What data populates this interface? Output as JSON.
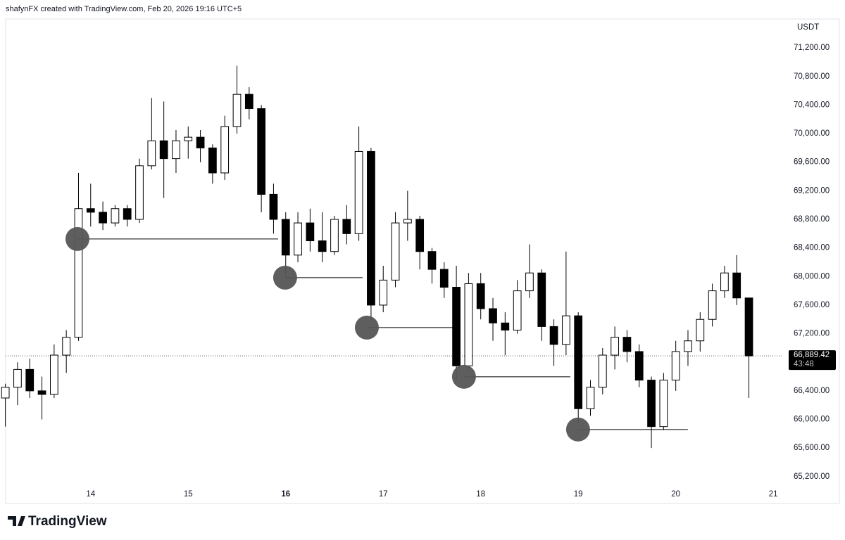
{
  "header": "shafynFX created with TradingView.com, Feb 20, 2026 19:16 UTC+5",
  "footer": "TradingView",
  "chart_data": {
    "type": "candlestick",
    "currency": "USDT",
    "x": [
      13.125,
      13.25,
      13.375,
      13.5,
      13.625,
      13.75,
      13.875,
      14.0,
      14.125,
      14.25,
      14.375,
      14.5,
      14.625,
      14.75,
      14.875,
      15.0,
      15.125,
      15.25,
      15.375,
      15.5,
      15.625,
      15.75,
      15.875,
      16.0,
      16.125,
      16.25,
      16.375,
      16.5,
      16.625,
      16.75,
      16.875,
      17.0,
      17.125,
      17.25,
      17.375,
      17.5,
      17.625,
      17.75,
      17.875,
      18.0,
      18.125,
      18.25,
      18.375,
      18.5,
      18.625,
      18.75,
      18.875,
      19.0,
      19.125,
      19.25,
      19.375,
      19.5,
      19.625,
      19.75,
      19.875,
      20.0,
      20.125,
      20.25,
      20.375,
      20.5,
      20.625,
      20.75
    ],
    "open": [
      66300,
      66450,
      66700,
      66400,
      66350,
      66900,
      67150,
      68950,
      68900,
      68750,
      68950,
      68800,
      69550,
      69900,
      69650,
      69900,
      69950,
      69800,
      69450,
      70100,
      70550,
      70350,
      69150,
      68800,
      68300,
      68750,
      68500,
      68350,
      68800,
      68600,
      69750,
      67600,
      67950,
      68750,
      68800,
      68350,
      68100,
      67850,
      66750,
      67900,
      67550,
      67350,
      67250,
      67800,
      68050,
      67300,
      67050,
      67450,
      66150,
      66450,
      66900,
      67150,
      66950,
      66550,
      65900,
      66550,
      66950,
      67100,
      67400,
      67800,
      68050,
      67700
    ],
    "high": [
      66500,
      66800,
      66850,
      66600,
      67050,
      67250,
      69450,
      69300,
      69050,
      69000,
      69000,
      69650,
      70500,
      70450,
      70050,
      70100,
      70050,
      69850,
      70250,
      70950,
      70650,
      70400,
      69300,
      68900,
      68900,
      68950,
      68900,
      68850,
      69000,
      70100,
      69800,
      68150,
      68900,
      69200,
      68850,
      68400,
      68200,
      68150,
      68050,
      68050,
      67700,
      67500,
      67950,
      68450,
      68100,
      67400,
      68350,
      67500,
      66550,
      67000,
      67300,
      67250,
      67050,
      66600,
      66650,
      67100,
      67250,
      67500,
      67900,
      68150,
      68300,
      67700
    ],
    "low": [
      65900,
      66200,
      66300,
      66000,
      66300,
      66650,
      67100,
      68700,
      68650,
      68700,
      68700,
      68750,
      69500,
      69100,
      69450,
      69650,
      69600,
      69300,
      69350,
      70000,
      70200,
      68900,
      68600,
      68000,
      68200,
      68350,
      68200,
      68300,
      68450,
      68500,
      67400,
      67500,
      67850,
      68500,
      68100,
      67900,
      67700,
      66550,
      66700,
      67400,
      67100,
      66900,
      67200,
      67700,
      67100,
      66750,
      66900,
      65950,
      66050,
      66350,
      66700,
      66800,
      66450,
      65600,
      65850,
      66400,
      66750,
      66950,
      67300,
      67700,
      67600,
      66300
    ],
    "close": [
      66450,
      66700,
      66400,
      66350,
      66900,
      67150,
      68950,
      68900,
      68750,
      68950,
      68800,
      69550,
      69900,
      69650,
      69900,
      69950,
      69800,
      69450,
      70100,
      70550,
      70350,
      69150,
      68800,
      68300,
      68750,
      68500,
      68350,
      68800,
      68600,
      69750,
      67600,
      67950,
      68750,
      68800,
      68350,
      68100,
      67850,
      66750,
      67900,
      67550,
      67350,
      67250,
      67800,
      68050,
      67300,
      67050,
      67450,
      66150,
      66450,
      66900,
      67150,
      66950,
      66550,
      65900,
      66550,
      66950,
      67100,
      67400,
      67800,
      68050,
      67700,
      66889.42
    ],
    "up_color": "#ffffff",
    "down_color": "#000000",
    "border_color": "#000000",
    "levels": [
      {
        "x": [
          13.864,
          15.922
        ],
        "y": 68525
      },
      {
        "x": [
          15.994,
          16.788
        ],
        "y": 67984
      },
      {
        "x": [
          16.832,
          17.763
        ],
        "y": 67285
      },
      {
        "x": [
          17.828,
          18.918
        ],
        "y": 66597
      },
      {
        "x": [
          18.998,
          20.124
        ],
        "y": 65859
      }
    ],
    "marker_color": "#555555",
    "last_price": {
      "value": 66889.42,
      "label": "66,889.42"
    },
    "countdown": "43:48",
    "xlim": [
      13.07,
      21.1
    ],
    "xticks": [
      14,
      15,
      16,
      17,
      18,
      19,
      20,
      21
    ],
    "bold_xtick_index": 2,
    "ylim": [
      65080,
      71575
    ],
    "yticks": [
      {
        "value": 65200,
        "label": "65,200.00"
      },
      {
        "value": 65600,
        "label": "65,600.00"
      },
      {
        "value": 66000,
        "label": "66,000.00"
      },
      {
        "value": 66400,
        "label": "66,400.00"
      },
      {
        "value": 66800,
        "label": "66,800.00"
      },
      {
        "value": 67200,
        "label": "67,200.00"
      },
      {
        "value": 67600,
        "label": "67,600.00"
      },
      {
        "value": 68000,
        "label": "68,000.00"
      },
      {
        "value": 68400,
        "label": "68,400.00"
      },
      {
        "value": 68800,
        "label": "68,800.00"
      },
      {
        "value": 69200,
        "label": "69,200.00"
      },
      {
        "value": 69600,
        "label": "69,600.00"
      },
      {
        "value": 70000,
        "label": "70,000.00"
      },
      {
        "value": 70400,
        "label": "70,400.00"
      },
      {
        "value": 70800,
        "label": "70,800.00"
      },
      {
        "value": 71200,
        "label": "71,200.00"
      }
    ]
  }
}
